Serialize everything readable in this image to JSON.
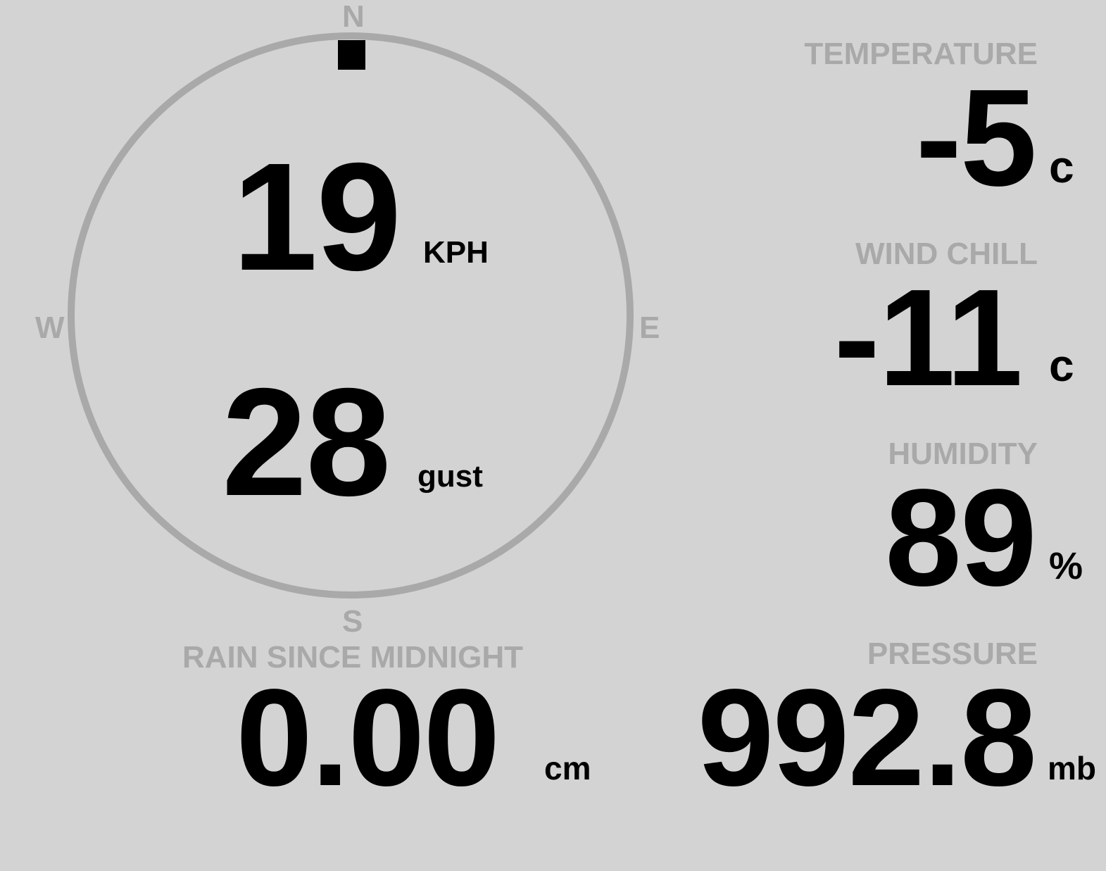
{
  "wind": {
    "speed": "19",
    "speed_unit": "KPH",
    "gust": "28",
    "gust_label": "gust",
    "direction_degrees": 0,
    "compass": {
      "north": "N",
      "east": "E",
      "south": "S",
      "west": "W"
    }
  },
  "rain": {
    "label": "RAIN SINCE MIDNIGHT",
    "value": "0.00",
    "unit": "cm"
  },
  "temperature": {
    "label": "TEMPERATURE",
    "value": "-5",
    "unit": "c"
  },
  "wind_chill": {
    "label": "WIND CHILL",
    "value": "-11",
    "unit": "c"
  },
  "humidity": {
    "label": "HUMIDITY",
    "value": "89",
    "unit": "%"
  },
  "pressure": {
    "label": "PRESSURE",
    "value": "992.8",
    "unit": "mb"
  },
  "colors": {
    "background": "#d3d3d3",
    "label": "#a9a9a9",
    "value": "#000000"
  }
}
